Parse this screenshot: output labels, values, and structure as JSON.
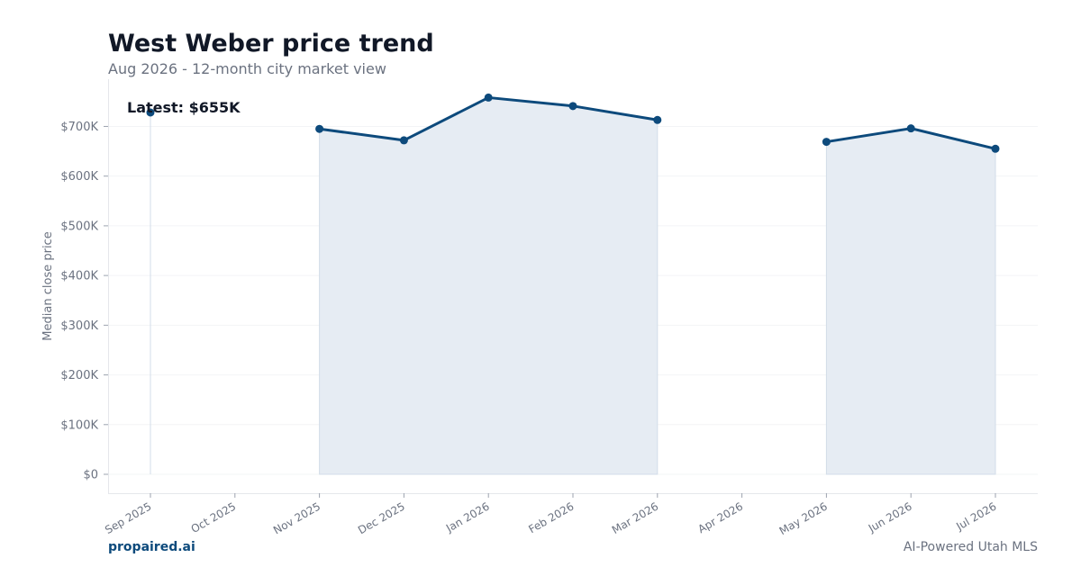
{
  "header": {
    "title": "West Weber price trend",
    "subtitle": "Aug 2026 - 12-month city market view"
  },
  "footer": {
    "brand": "propaired.ai",
    "tagline": "AI-Powered Utah MLS"
  },
  "colors": {
    "line": "#0d4a7c",
    "fill": "#e6ecf3",
    "text": "#6b7280",
    "title": "#111827"
  },
  "chart_data": {
    "type": "line",
    "title": "West Weber price trend",
    "subtitle": "Aug 2026 - 12-month city market view",
    "xlabel": "",
    "ylabel": "Median close price",
    "x": [
      "Sep 2025",
      "Oct 2025",
      "Nov 2025",
      "Dec 2025",
      "Jan 2026",
      "Feb 2026",
      "Mar 2026",
      "Apr 2026",
      "May 2026",
      "Jun 2026",
      "Jul 2026"
    ],
    "series": [
      {
        "values": [
          728000,
          null,
          695000,
          672000,
          758000,
          741000,
          713000,
          null,
          669000,
          696000,
          655000
        ]
      }
    ],
    "yticks": [
      0,
      100000,
      200000,
      300000,
      400000,
      500000,
      600000,
      700000
    ],
    "ytick_labels": [
      "$0",
      "$100K",
      "$200K",
      "$300K",
      "$400K",
      "$500K",
      "$600K",
      "$700K"
    ],
    "ylim": [
      -38000,
      795000
    ],
    "annotation": "Latest: $655K",
    "grid": true,
    "legend": "none"
  }
}
